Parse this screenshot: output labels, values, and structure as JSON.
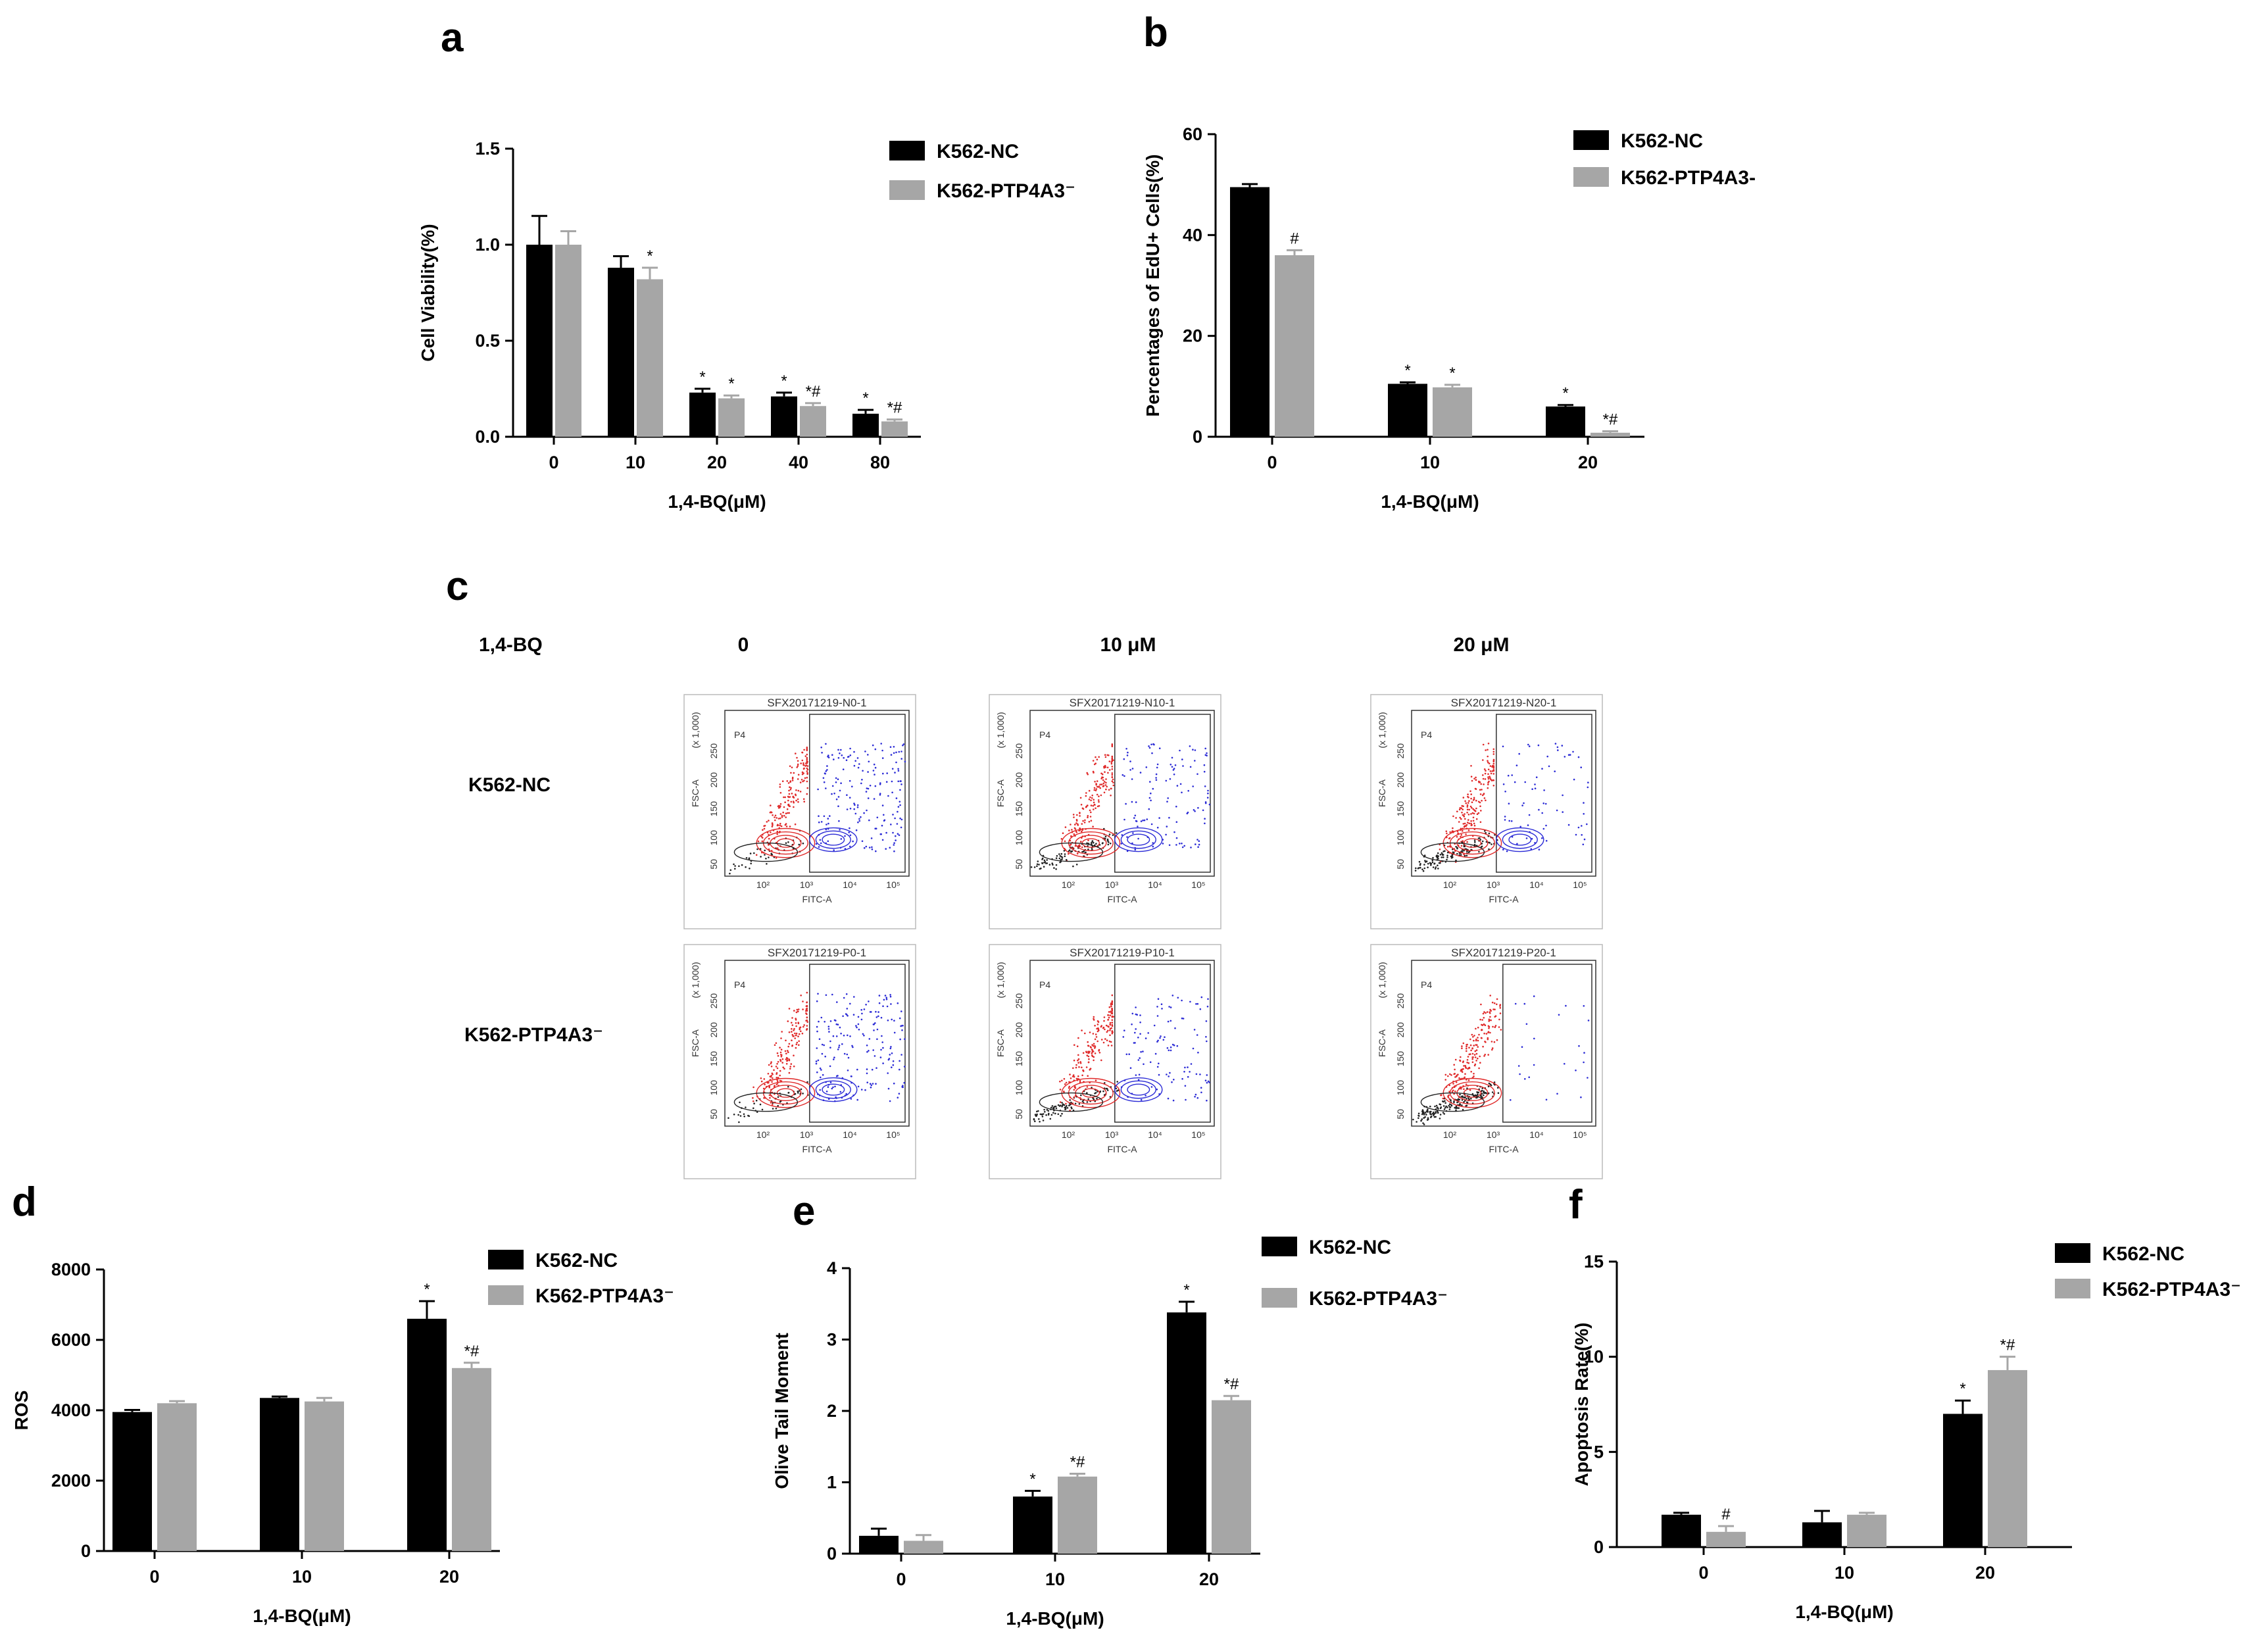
{
  "figure": {
    "panel_labels": [
      "a",
      "b",
      "c",
      "d",
      "e",
      "f"
    ],
    "colors": {
      "nc": "#000000",
      "ptp": "#a6a6a6",
      "gate_positive": "#2b2bd6",
      "gate_negative": "#e02a2a",
      "debris": "#222222"
    }
  },
  "chart_data": [
    {
      "panel": "a",
      "type": "bar",
      "ylabel": "Cell Viability(%)",
      "xlabel": "1,4-BQ(μM)",
      "categories": [
        "0",
        "10",
        "20",
        "40",
        "80"
      ],
      "ylim": [
        0,
        1.5
      ],
      "yticks": [
        "0.0",
        "0.5",
        "1.0",
        "1.5"
      ],
      "series": [
        {
          "name": "K562-NC",
          "values": [
            1.0,
            0.88,
            0.23,
            0.21,
            0.12
          ],
          "errors": [
            0.15,
            0.06,
            0.02,
            0.02,
            0.02
          ],
          "marks": [
            "",
            "",
            "*",
            "*",
            "*"
          ]
        },
        {
          "name": "K562-PTP4A3⁻",
          "values": [
            1.0,
            0.82,
            0.2,
            0.16,
            0.08
          ],
          "errors": [
            0.07,
            0.06,
            0.015,
            0.015,
            0.01
          ],
          "marks": [
            "",
            "*",
            "*",
            "*#",
            "*#"
          ]
        }
      ]
    },
    {
      "panel": "b",
      "type": "bar",
      "ylabel": "Percentages of EdU+ Cells(%)",
      "xlabel": "1,4-BQ(μM)",
      "categories": [
        "0",
        "10",
        "20"
      ],
      "ylim": [
        0,
        60
      ],
      "yticks": [
        "0",
        "20",
        "40",
        "60"
      ],
      "series": [
        {
          "name": "K562-NC",
          "values": [
            49.5,
            10.5,
            6.0
          ],
          "errors": [
            0.6,
            0.3,
            0.3
          ],
          "marks": [
            "",
            "*",
            "*"
          ]
        },
        {
          "name": "K562-PTP4A3-",
          "values": [
            36.0,
            9.8,
            0.8
          ],
          "errors": [
            1.0,
            0.5,
            0.3
          ],
          "marks": [
            "#",
            "*",
            "*#"
          ]
        }
      ]
    },
    {
      "panel": "d",
      "type": "bar",
      "ylabel": "ROS",
      "xlabel": "1,4-BQ(μM)",
      "categories": [
        "0",
        "10",
        "20"
      ],
      "ylim": [
        0,
        8000
      ],
      "yticks": [
        "0",
        "2000",
        "4000",
        "6000",
        "8000"
      ],
      "series": [
        {
          "name": "K562-NC",
          "values": [
            3950,
            4350,
            6600
          ],
          "errors": [
            60,
            40,
            500
          ],
          "marks": [
            "",
            "",
            "*"
          ]
        },
        {
          "name": "K562-PTP4A3⁻",
          "values": [
            4200,
            4250,
            5200
          ],
          "errors": [
            60,
            100,
            150
          ],
          "marks": [
            "",
            "",
            "*#"
          ]
        }
      ]
    },
    {
      "panel": "e",
      "type": "bar",
      "ylabel": "Olive Tail Moment",
      "xlabel": "1,4-BQ(μM)",
      "categories": [
        "0",
        "10",
        "20"
      ],
      "ylim": [
        0,
        4
      ],
      "yticks": [
        "0",
        "1",
        "2",
        "3",
        "4"
      ],
      "series": [
        {
          "name": "K562-NC",
          "values": [
            0.25,
            0.8,
            3.38
          ],
          "errors": [
            0.1,
            0.08,
            0.15
          ],
          "marks": [
            "",
            "*",
            "*"
          ]
        },
        {
          "name": "K562-PTP4A3⁻",
          "values": [
            0.18,
            1.08,
            2.15
          ],
          "errors": [
            0.08,
            0.04,
            0.06
          ],
          "marks": [
            "",
            "*#",
            "*#"
          ]
        }
      ]
    },
    {
      "panel": "f",
      "type": "bar",
      "ylabel": "Apoptosis Rate(%)",
      "xlabel": "1,4-BQ(μM)",
      "categories": [
        "0",
        "10",
        "20"
      ],
      "ylim": [
        0,
        15
      ],
      "yticks": [
        "0",
        "5",
        "10",
        "15"
      ],
      "series": [
        {
          "name": "K562-NC",
          "values": [
            1.7,
            1.3,
            7.0
          ],
          "errors": [
            0.1,
            0.6,
            0.7
          ],
          "marks": [
            "",
            "",
            "*"
          ]
        },
        {
          "name": "K562-PTP4A3⁻",
          "values": [
            0.8,
            1.7,
            9.3
          ],
          "errors": [
            0.3,
            0.1,
            0.7
          ],
          "marks": [
            "#",
            "",
            "*#"
          ]
        }
      ]
    }
  ],
  "flow": {
    "treatment_label": "1,4-BQ",
    "columns": [
      "0",
      "10 μM",
      "20 μM"
    ],
    "rows": [
      "K562-NC",
      "K562-PTP4A3⁻"
    ],
    "titles": [
      [
        "SFX20171219-N0-1",
        "SFX20171219-N10-1",
        "SFX20171219-N20-1"
      ],
      [
        "SFX20171219-P0-1",
        "SFX20171219-P10-1",
        "SFX20171219-P20-1"
      ]
    ],
    "x_axis_label": "FITC-A",
    "y_axis_label": "FSC-A",
    "y_scale_label": "(x 1,000)",
    "gate_label": "P4",
    "y_ticks": [
      "50",
      "100",
      "150",
      "200",
      "250"
    ],
    "x_ticks": [
      "10²",
      "10³",
      "10⁴",
      "10⁵"
    ],
    "positive_fraction": [
      [
        0.45,
        0.3,
        0.2
      ],
      [
        0.42,
        0.28,
        0.05
      ]
    ]
  }
}
